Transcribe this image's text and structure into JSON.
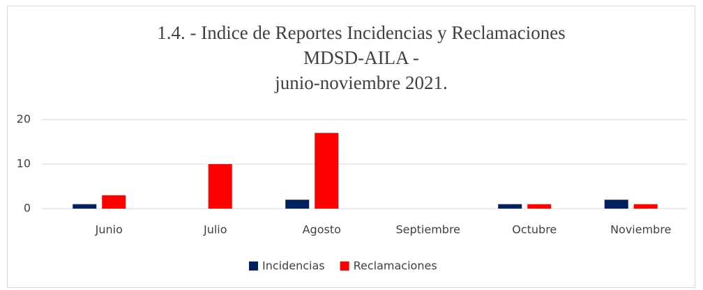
{
  "chart_data": {
    "type": "bar",
    "title": [
      "1.4. - Indice de Reportes Incidencias y Reclamaciones",
      "MDSD-AILA -",
      "junio-noviembre 2021."
    ],
    "categories": [
      "Junio",
      "Julio",
      "Agosto",
      "Septiembre",
      "Octubre",
      "Noviembre"
    ],
    "series": [
      {
        "name": "Incidencias",
        "color": "#002060",
        "values": [
          1,
          0,
          2,
          0,
          1,
          2
        ]
      },
      {
        "name": "Reclamaciones",
        "color": "#ff0000",
        "values": [
          3,
          10,
          17,
          0,
          1,
          1
        ]
      }
    ],
    "ylim": [
      0,
      20
    ],
    "yticks": [
      0,
      10,
      20
    ],
    "grid": true,
    "legend": "bottom"
  }
}
